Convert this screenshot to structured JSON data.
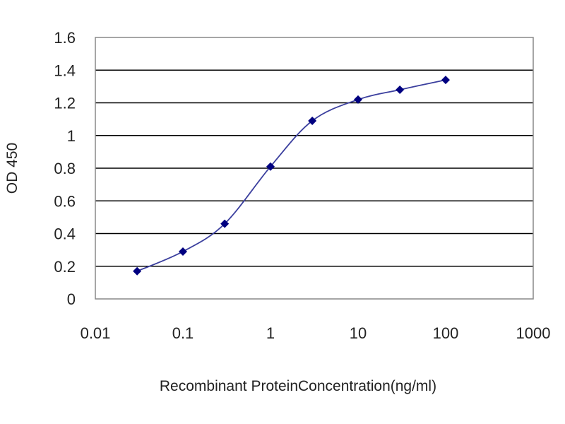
{
  "chart_data": {
    "type": "line",
    "xlabel": "Recombinant ProteinConcentration(ng/ml)",
    "ylabel": "OD 450",
    "x_scale": "log",
    "xlim": [
      0.01,
      1000
    ],
    "ylim": [
      0,
      1.6
    ],
    "x_ticks": [
      "0.01",
      "0.1",
      "1",
      "10",
      "100",
      "1000"
    ],
    "y_ticks": [
      "0",
      "0.2",
      "0.4",
      "0.6",
      "0.8",
      "1",
      "1.2",
      "1.4",
      "1.6"
    ],
    "grid": "horizontal",
    "legend": "none",
    "series": [
      {
        "x": [
          0.03,
          0.1,
          0.3,
          1,
          3,
          10,
          30,
          100
        ],
        "y": [
          0.17,
          0.29,
          0.46,
          0.81,
          1.09,
          1.22,
          1.28,
          1.34
        ]
      }
    ],
    "colors": {
      "plot_background": "#ffffff",
      "gridline": "#000000",
      "plot_border": "#888888",
      "line": "#3b3f9e",
      "marker": "#000080"
    }
  }
}
